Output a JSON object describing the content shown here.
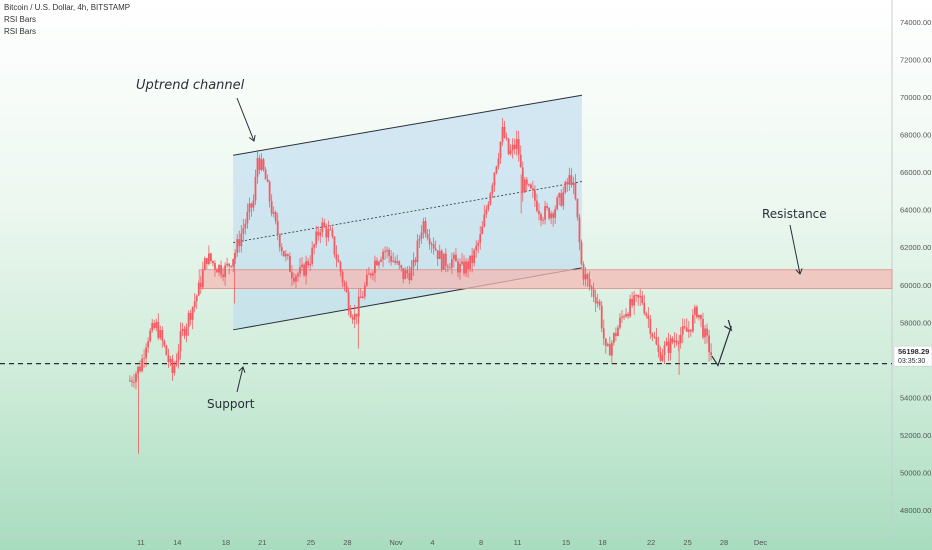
{
  "header": {
    "symbol": "Bitcoin / U.S. Dollar, 4h, BITSTAMP",
    "indicator_1": "RSI Bars",
    "indicator_2": "RSI Bars"
  },
  "price_label": {
    "value": "56198.29",
    "countdown": "03:35:30"
  },
  "colors": {
    "candle": "#f05c64",
    "channel_fill": "#bcdaf0",
    "resistance_fill": "#f4b9b5",
    "axis_text": "#555555"
  },
  "chart_data": {
    "type": "candlestick",
    "y_ticks": [
      48000,
      50000,
      52000,
      54000,
      56000,
      58000,
      60000,
      62000,
      64000,
      66000,
      68000,
      70000,
      72000,
      74000
    ],
    "y_range": [
      47000,
      76200
    ],
    "x_ticks": [
      {
        "label": "11",
        "day": 11
      },
      {
        "label": "14",
        "day": 14
      },
      {
        "label": "18",
        "day": 18
      },
      {
        "label": "21",
        "day": 21
      },
      {
        "label": "25",
        "day": 25
      },
      {
        "label": "28",
        "day": 28
      },
      {
        "label": "Nov",
        "day": 32
      },
      {
        "label": "4",
        "day": 35
      },
      {
        "label": "8",
        "day": 39
      },
      {
        "label": "11",
        "day": 42
      },
      {
        "label": "15",
        "day": 46
      },
      {
        "label": "18",
        "day": 49
      },
      {
        "label": "22",
        "day": 53
      },
      {
        "label": "25",
        "day": 56
      },
      {
        "label": "28",
        "day": 59
      },
      {
        "label": "Dec",
        "day": 62
      }
    ],
    "price_path": [
      {
        "day": 10.1,
        "price": 54900
      },
      {
        "day": 11,
        "price": 55700
      },
      {
        "day": 11.5,
        "price": 57200
      },
      {
        "day": 12.3,
        "price": 57800
      },
      {
        "day": 13,
        "price": 56500
      },
      {
        "day": 13.6,
        "price": 55300
      },
      {
        "day": 14.3,
        "price": 57200
      },
      {
        "day": 15,
        "price": 58400
      },
      {
        "day": 15.8,
        "price": 59800
      },
      {
        "day": 16.4,
        "price": 61500
      },
      {
        "day": 17.2,
        "price": 61000
      },
      {
        "day": 18,
        "price": 60800
      },
      {
        "day": 18.8,
        "price": 61800
      },
      {
        "day": 19.4,
        "price": 63000
      },
      {
        "day": 20.3,
        "price": 64500
      },
      {
        "day": 20.6,
        "price": 66800
      },
      {
        "day": 21.2,
        "price": 65800
      },
      {
        "day": 22,
        "price": 63300
      },
      {
        "day": 22.8,
        "price": 61600
      },
      {
        "day": 23.5,
        "price": 60600
      },
      {
        "day": 24.2,
        "price": 60600
      },
      {
        "day": 25,
        "price": 61500
      },
      {
        "day": 25.8,
        "price": 63200
      },
      {
        "day": 26.6,
        "price": 62600
      },
      {
        "day": 27.4,
        "price": 60800
      },
      {
        "day": 28.2,
        "price": 58800
      },
      {
        "day": 28.6,
        "price": 58300
      },
      {
        "day": 29.3,
        "price": 59600
      },
      {
        "day": 30.2,
        "price": 61200
      },
      {
        "day": 31,
        "price": 61900
      },
      {
        "day": 31.8,
        "price": 61300
      },
      {
        "day": 32.6,
        "price": 60500
      },
      {
        "day": 33.4,
        "price": 60800
      },
      {
        "day": 34.2,
        "price": 63400
      },
      {
        "day": 35,
        "price": 62300
      },
      {
        "day": 35.8,
        "price": 61200
      },
      {
        "day": 36.6,
        "price": 61300
      },
      {
        "day": 37.4,
        "price": 60800
      },
      {
        "day": 38.2,
        "price": 61200
      },
      {
        "day": 39,
        "price": 62600
      },
      {
        "day": 39.6,
        "price": 64600
      },
      {
        "day": 40.3,
        "price": 66700
      },
      {
        "day": 40.8,
        "price": 68200
      },
      {
        "day": 41.3,
        "price": 66900
      },
      {
        "day": 42,
        "price": 67600
      },
      {
        "day": 42.4,
        "price": 65300
      },
      {
        "day": 43.2,
        "price": 64800
      },
      {
        "day": 44,
        "price": 63800
      },
      {
        "day": 44.8,
        "price": 63900
      },
      {
        "day": 45.6,
        "price": 64600
      },
      {
        "day": 46.4,
        "price": 65800
      },
      {
        "day": 46.8,
        "price": 64300
      },
      {
        "day": 47.3,
        "price": 60800
      },
      {
        "day": 48,
        "price": 59800
      },
      {
        "day": 48.7,
        "price": 59100
      },
      {
        "day": 49.3,
        "price": 56200
      },
      {
        "day": 50,
        "price": 57300
      },
      {
        "day": 50.8,
        "price": 58600
      },
      {
        "day": 51.6,
        "price": 59000
      },
      {
        "day": 52.2,
        "price": 59300
      },
      {
        "day": 53,
        "price": 57700
      },
      {
        "day": 53.6,
        "price": 56300
      },
      {
        "day": 54.4,
        "price": 56700
      },
      {
        "day": 55.2,
        "price": 57300
      },
      {
        "day": 56,
        "price": 57500
      },
      {
        "day": 56.8,
        "price": 58700
      },
      {
        "day": 57.4,
        "price": 57300
      },
      {
        "day": 58,
        "price": 56200
      }
    ],
    "spikes": [
      {
        "day": 10.8,
        "low": 51000
      },
      {
        "day": 18.7,
        "low": 59000
      },
      {
        "day": 28.9,
        "low": 56600
      },
      {
        "day": 42.3,
        "low": 63800
      },
      {
        "day": 55.3,
        "low": 55200
      }
    ],
    "channel": {
      "start_day": 18.6,
      "end_day": 47.3,
      "upper_start": 66900,
      "upper_end": 70100,
      "lower_start": 57600,
      "lower_end": 60900
    },
    "resistance_zone": {
      "start_day": 15.8,
      "low": 59800,
      "high": 60800
    },
    "support_level": 55800,
    "projection": [
      {
        "day": 58,
        "price": 56200
      },
      {
        "day": 58.5,
        "price": 55700
      },
      {
        "day": 59.6,
        "price": 57800
      }
    ],
    "last_price": 56198.29,
    "annotations": {
      "uptrend": "Uptrend channel",
      "resistance": "Resistance",
      "support": "Support"
    }
  }
}
